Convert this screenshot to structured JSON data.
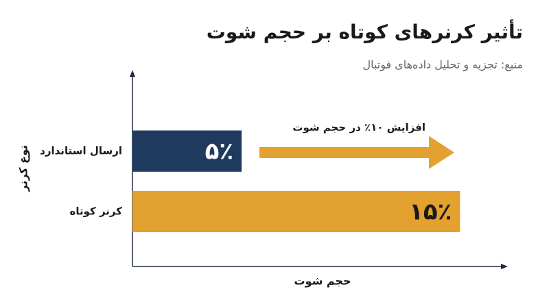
{
  "chart_data": {
    "type": "hbar",
    "title": "تأثیر کرنرهای کوتاه بر حجم شوت",
    "subtitle": "منبع: تجزیه و تحلیل داده‌های فوتبال",
    "annotation": "افزایش ۱۰٪ در حجم شوت",
    "x_label": "حجم شوت",
    "y_label": "نوع کرنر",
    "categories": [
      "ارسال استاندارد",
      "کرنر کوتاه"
    ],
    "values": [
      5,
      15
    ],
    "value_labels": [
      "۵٪",
      "۱۵٪"
    ],
    "colors": [
      "#1f3a5f",
      "#e3a22f"
    ],
    "xlim": [
      0,
      17
    ]
  }
}
